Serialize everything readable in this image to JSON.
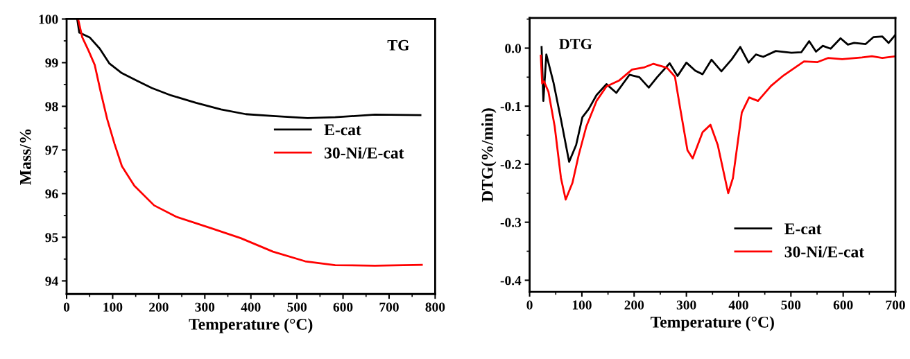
{
  "chart_data": [
    {
      "type": "line",
      "xlabel": "Temperature (°C)",
      "ylabel": "Mass/%",
      "annotations": [
        "TG"
      ],
      "xlim": [
        0,
        800
      ],
      "xticks": [
        0,
        100,
        200,
        300,
        400,
        500,
        600,
        700,
        800
      ],
      "ylim": [
        93.7,
        100
      ],
      "yticks": [
        94,
        95,
        96,
        97,
        98,
        99,
        100
      ],
      "legend": "right",
      "grid": false,
      "marker": "none",
      "line_style": "solid",
      "series": [
        {
          "name": "E-cat",
          "color": "#000000",
          "x": [
            23,
            27.5,
            50,
            72,
            93,
            120,
            152,
            185,
            227,
            281,
            335,
            389,
            448,
            523,
            583,
            669,
            768
          ],
          "values": [
            100.0,
            99.69,
            99.58,
            99.32,
            98.98,
            98.76,
            98.59,
            98.42,
            98.25,
            98.08,
            97.93,
            97.82,
            97.78,
            97.73,
            97.75,
            97.81,
            97.8
          ]
        },
        {
          "name": "30-Ni/E-cat",
          "color": "#ff0000",
          "x": [
            25,
            34,
            47,
            61,
            74,
            88,
            104,
            120,
            147,
            190,
            238,
            313,
            378,
            448,
            518,
            583,
            669,
            771
          ],
          "values": [
            100.0,
            99.58,
            99.29,
            98.95,
            98.33,
            97.71,
            97.14,
            96.63,
            96.18,
            95.73,
            95.47,
            95.21,
            94.98,
            94.67,
            94.45,
            94.36,
            94.35,
            94.37
          ]
        }
      ]
    },
    {
      "type": "line",
      "xlabel": "Temperature (°C)",
      "ylabel": "DTG(%/min)",
      "annotations": [
        "DTG"
      ],
      "xlim": [
        0,
        700
      ],
      "xticks": [
        0,
        100,
        200,
        300,
        400,
        500,
        600,
        700
      ],
      "ylim": [
        -0.42,
        0.052
      ],
      "yticks": [
        {
          "value": -0.4,
          "label": "-0.4"
        },
        {
          "value": -0.3,
          "label": "-0.3"
        },
        {
          "value": -0.2,
          "label": "-0.2"
        },
        {
          "value": -0.1,
          "label": "-0.1"
        },
        {
          "value": 0,
          "label": "0.0"
        }
      ],
      "legend": "bottom right",
      "grid": false,
      "marker": "none",
      "line_style": "solid",
      "series": [
        {
          "name": "E-cat",
          "color": "#000000",
          "x": [
            22.9,
            26.3,
            32,
            45.6,
            60,
            75.6,
            89,
            101,
            113,
            128,
            147,
            166,
            191,
            210,
            228,
            244,
            268,
            283,
            300,
            317,
            331,
            348,
            367,
            387,
            403,
            419,
            433,
            447,
            471,
            501,
            520,
            535,
            548,
            561,
            576,
            595,
            609,
            621,
            643,
            658,
            675,
            687,
            700
          ],
          "values": [
            0.002,
            -0.091,
            -0.011,
            -0.059,
            -0.123,
            -0.196,
            -0.167,
            -0.119,
            -0.105,
            -0.081,
            -0.062,
            -0.077,
            -0.046,
            -0.05,
            -0.068,
            -0.05,
            -0.026,
            -0.048,
            -0.025,
            -0.039,
            -0.045,
            -0.02,
            -0.04,
            -0.019,
            0.002,
            -0.025,
            -0.011,
            -0.015,
            -0.005,
            -0.008,
            -0.007,
            0.012,
            -0.006,
            0.004,
            -0.001,
            0.017,
            0.006,
            0.009,
            0.007,
            0.019,
            0.02,
            0.009,
            0.023
          ]
        },
        {
          "name": "30-Ni/E-cat",
          "color": "#ff0000",
          "x": [
            21.4,
            24,
            27.3,
            36,
            48,
            60,
            69,
            82,
            94,
            108.5,
            128,
            147,
            171,
            196,
            220,
            237,
            263,
            278,
            288,
            302,
            312,
            331,
            346,
            360,
            380,
            389,
            406,
            420,
            437,
            462,
            486,
            525,
            551,
            571,
            598,
            636,
            655,
            675,
            700
          ],
          "values": [
            -0.013,
            -0.061,
            -0.057,
            -0.075,
            -0.135,
            -0.224,
            -0.261,
            -0.232,
            -0.184,
            -0.135,
            -0.091,
            -0.066,
            -0.056,
            -0.037,
            -0.033,
            -0.027,
            -0.034,
            -0.049,
            -0.103,
            -0.176,
            -0.19,
            -0.145,
            -0.132,
            -0.167,
            -0.25,
            -0.224,
            -0.111,
            -0.085,
            -0.091,
            -0.065,
            -0.047,
            -0.023,
            -0.024,
            -0.017,
            -0.019,
            -0.016,
            -0.014,
            -0.017,
            -0.014
          ]
        }
      ]
    }
  ]
}
